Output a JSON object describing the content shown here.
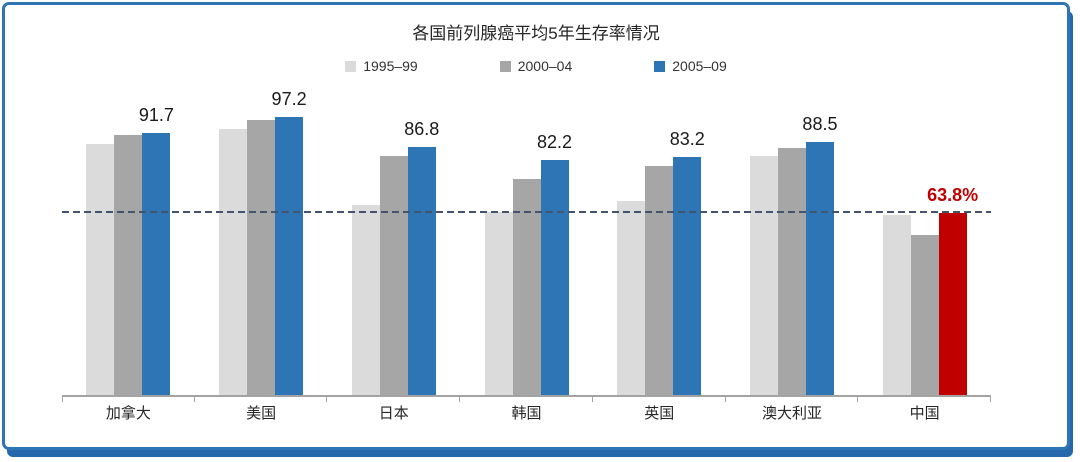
{
  "frame": {
    "border_color": "#2E75B6",
    "background": "#FFFFFF"
  },
  "chart_data": {
    "type": "bar",
    "title": "各国前列腺癌平均5年生存率情况",
    "categories": [
      "加拿大",
      "美国",
      "日本",
      "韩国",
      "英国",
      "澳大利亚",
      "中国"
    ],
    "series": [
      {
        "name": "1995–99",
        "color": "#DBDBDB",
        "values": [
          88,
          93,
          66.5,
          64,
          68,
          83.5,
          63
        ]
      },
      {
        "name": "2000–04",
        "color": "#A6A6A6",
        "values": [
          91,
          96.3,
          83.5,
          75.5,
          80,
          86.5,
          56
        ]
      },
      {
        "name": "2005–09",
        "color": "#2E75B6",
        "values": [
          91.7,
          97.2,
          86.8,
          82.2,
          83.2,
          88.5,
          63.8
        ]
      }
    ],
    "bar_labels": [
      "91.7",
      "97.2",
      "86.8",
      "82.2",
      "83.2",
      "88.5",
      "63.8%"
    ],
    "label_series": "2005–09",
    "highlight": {
      "category": "中国",
      "series": "2005–09",
      "bar_color": "#C00000",
      "label_color": "#C00000"
    },
    "reference_line": {
      "value": 63.8,
      "style": "dashed",
      "color": "#44546A"
    },
    "ylim": [
      0,
      105
    ],
    "legend_position": "top",
    "grid": false,
    "axis_color": "#A3A3A3",
    "value_label_color": "#1A1A1A"
  }
}
